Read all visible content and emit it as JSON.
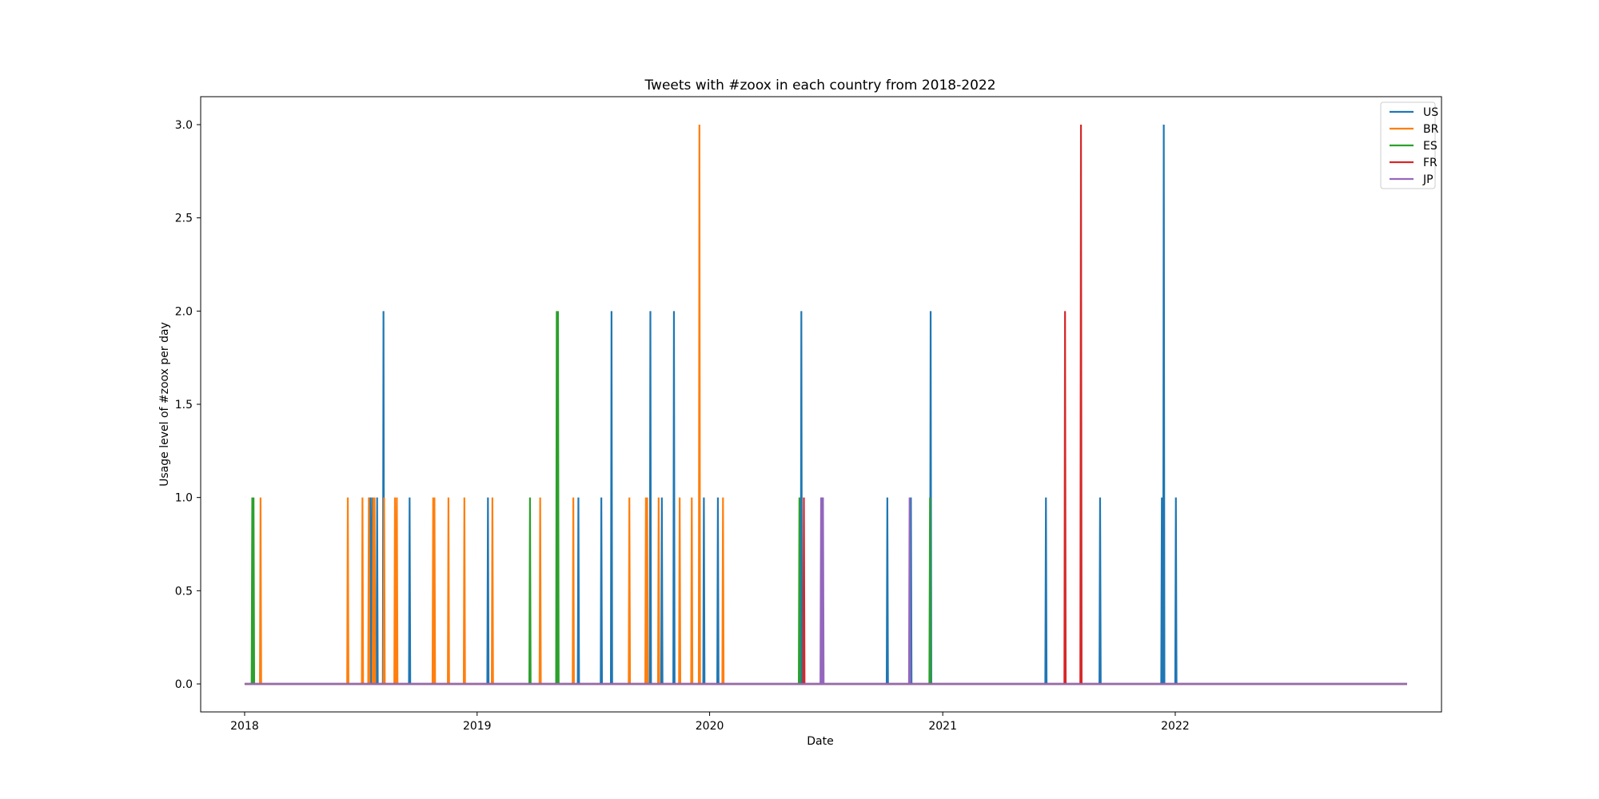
{
  "chart_data": {
    "type": "line",
    "title": "Tweets with #zoox in each country from 2018-2022",
    "xlabel": "Date",
    "ylabel": "Usage level of #zoox per day",
    "xlim": [
      "2017-10-24",
      "2023-02-23"
    ],
    "ylim": [
      -0.15,
      3.15
    ],
    "x_ticks": [
      {
        "date": "2018-01-01",
        "label": "2018"
      },
      {
        "date": "2019-01-01",
        "label": "2019"
      },
      {
        "date": "2020-01-01",
        "label": "2020"
      },
      {
        "date": "2021-01-01",
        "label": "2021"
      },
      {
        "date": "2022-01-01",
        "label": "2022"
      }
    ],
    "y_ticks": [
      {
        "value": 0.0,
        "label": "0.0"
      },
      {
        "value": 0.5,
        "label": "0.5"
      },
      {
        "value": 1.0,
        "label": "1.0"
      },
      {
        "value": 1.5,
        "label": "1.5"
      },
      {
        "value": 2.0,
        "label": "2.0"
      },
      {
        "value": 2.5,
        "label": "2.5"
      },
      {
        "value": 3.0,
        "label": "3.0"
      }
    ],
    "x_range": [
      "2018-01-01",
      "2022-12-31"
    ],
    "grid": false,
    "legend_position": "top-right",
    "series": [
      {
        "name": "US",
        "color": "#1f77b4",
        "spikes": [
          {
            "date": "2018-07-17",
            "value": 1
          },
          {
            "date": "2018-07-20",
            "value": 1
          },
          {
            "date": "2018-07-28",
            "value": 1
          },
          {
            "date": "2018-08-07",
            "value": 2
          },
          {
            "date": "2018-09-17",
            "value": 1
          },
          {
            "date": "2019-01-18",
            "value": 1
          },
          {
            "date": "2019-06-09",
            "value": 1
          },
          {
            "date": "2019-07-15",
            "value": 1
          },
          {
            "date": "2019-07-31",
            "value": 2
          },
          {
            "date": "2019-09-30",
            "value": 2
          },
          {
            "date": "2019-10-18",
            "value": 1
          },
          {
            "date": "2019-11-06",
            "value": 2
          },
          {
            "date": "2019-12-23",
            "value": 1
          },
          {
            "date": "2020-01-14",
            "value": 1
          },
          {
            "date": "2020-05-24",
            "value": 2
          },
          {
            "date": "2020-06-25",
            "value": 1
          },
          {
            "date": "2020-10-06",
            "value": 1
          },
          {
            "date": "2020-11-12",
            "value": 1
          },
          {
            "date": "2020-12-13",
            "value": 2
          },
          {
            "date": "2021-06-12",
            "value": 1
          },
          {
            "date": "2021-09-05",
            "value": 1
          },
          {
            "date": "2021-12-11",
            "value": 1
          },
          {
            "date": "2021-12-14",
            "value": 3
          },
          {
            "date": "2022-01-02",
            "value": 1
          }
        ]
      },
      {
        "name": "BR",
        "color": "#ff7f0e",
        "spikes": [
          {
            "date": "2018-01-26",
            "value": 1
          },
          {
            "date": "2018-06-12",
            "value": 1
          },
          {
            "date": "2018-07-05",
            "value": 1
          },
          {
            "date": "2018-07-15",
            "value": 1
          },
          {
            "date": "2018-07-22",
            "value": 1
          },
          {
            "date": "2018-07-24",
            "value": 1
          },
          {
            "date": "2018-08-08",
            "value": 1
          },
          {
            "date": "2018-08-25",
            "value": 1
          },
          {
            "date": "2018-08-28",
            "value": 1
          },
          {
            "date": "2018-10-24",
            "value": 1
          },
          {
            "date": "2018-10-26",
            "value": 1
          },
          {
            "date": "2018-11-17",
            "value": 1
          },
          {
            "date": "2018-12-12",
            "value": 1
          },
          {
            "date": "2019-01-25",
            "value": 1
          },
          {
            "date": "2019-04-10",
            "value": 1
          },
          {
            "date": "2019-06-01",
            "value": 1
          },
          {
            "date": "2019-08-28",
            "value": 1
          },
          {
            "date": "2019-09-23",
            "value": 1
          },
          {
            "date": "2019-09-25",
            "value": 1
          },
          {
            "date": "2019-10-13",
            "value": 1
          },
          {
            "date": "2019-11-15",
            "value": 1
          },
          {
            "date": "2019-12-04",
            "value": 1
          },
          {
            "date": "2019-12-16",
            "value": 3
          },
          {
            "date": "2020-01-22",
            "value": 1
          }
        ]
      },
      {
        "name": "ES",
        "color": "#2ca02c",
        "spikes": [
          {
            "date": "2018-01-13",
            "value": 1
          },
          {
            "date": "2018-01-15",
            "value": 1
          },
          {
            "date": "2019-03-25",
            "value": 1
          },
          {
            "date": "2019-05-06",
            "value": 2
          },
          {
            "date": "2019-05-08",
            "value": 2
          },
          {
            "date": "2020-05-21",
            "value": 1
          },
          {
            "date": "2020-12-12",
            "value": 1
          }
        ]
      },
      {
        "name": "FR",
        "color": "#d62728",
        "spikes": [
          {
            "date": "2020-05-28",
            "value": 1
          },
          {
            "date": "2021-07-12",
            "value": 2
          },
          {
            "date": "2021-08-06",
            "value": 3
          }
        ]
      },
      {
        "name": "JP",
        "color": "#9467bd",
        "spikes": [
          {
            "date": "2020-06-24",
            "value": 1
          },
          {
            "date": "2020-06-27",
            "value": 1
          },
          {
            "date": "2020-11-10",
            "value": 1
          }
        ]
      }
    ]
  }
}
